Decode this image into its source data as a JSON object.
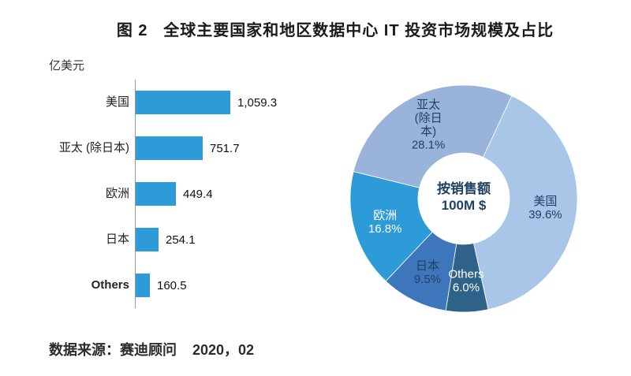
{
  "page": {
    "title": "图 2   全球主要国家和地区数据中心 IT 投资市场规模及占比",
    "source": "数据来源：赛迪顾问    2020，02"
  },
  "chart_data": [
    {
      "id": "bar-chart",
      "type": "bar",
      "orientation": "horizontal",
      "unit_label": "亿美元",
      "bar_color": "#2D9BD8",
      "categories": [
        "美国",
        "亚太 (除日本)",
        "欧洲",
        "日本",
        "Others"
      ],
      "values": [
        1059.3,
        751.7,
        449.4,
        254.1,
        160.5
      ],
      "value_labels": [
        "1,059.3",
        "751.7",
        "449.4",
        "254.1",
        "160.5"
      ],
      "bold_categories": [
        "Others"
      ],
      "xlim": [
        0,
        1100
      ],
      "grid": false
    },
    {
      "id": "donut-chart",
      "type": "pie",
      "donut": true,
      "start_angle_deg": 25,
      "center_label_lines": [
        "按销售额",
        "100M $"
      ],
      "center_text_color": "#1F4065",
      "slices": [
        {
          "name": "美国",
          "value": 39.6,
          "label_lines": [
            "美国",
            "39.6%"
          ],
          "color": "#A9C6E8",
          "text_color": "#1F4065"
        },
        {
          "name": "Others",
          "value": 6.0,
          "label_lines": [
            "Others",
            "6.0%"
          ],
          "color": "#2F6288",
          "text_color": "#FFFFFF"
        },
        {
          "name": "日本",
          "value": 9.5,
          "label_lines": [
            "日本",
            "9.5%"
          ],
          "color": "#3E76BC",
          "text_color": "#1F4065"
        },
        {
          "name": "欧洲",
          "value": 16.8,
          "label_lines": [
            "欧洲",
            "16.8%"
          ],
          "color": "#2D9BD8",
          "text_color": "#FFFFFF"
        },
        {
          "name": "亚太 (除日本)",
          "value": 28.1,
          "label_lines": [
            "亚太",
            "(除日",
            "本)",
            "28.1%"
          ],
          "color": "#9AB3DA",
          "text_color": "#1F4065"
        }
      ]
    }
  ]
}
